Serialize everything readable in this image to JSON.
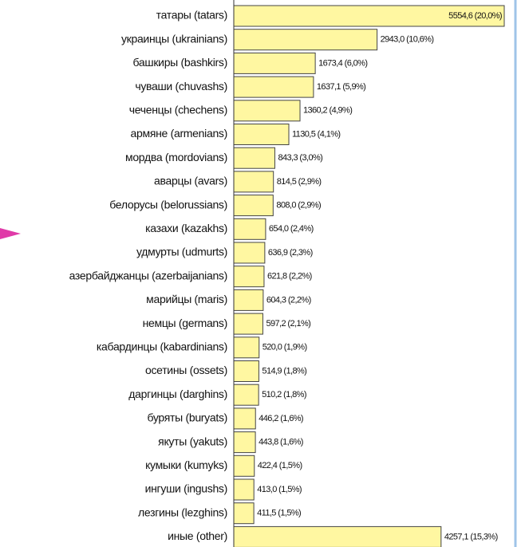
{
  "chart_data": {
    "type": "bar",
    "orientation": "horizontal",
    "color": "#fff7a1",
    "categories": [
      "татары (tatars)",
      "украинцы (ukrainians)",
      "башкиры (bashkirs)",
      "чуваши (chuvashs)",
      "чеченцы (chechens)",
      "армяне (armenians)",
      "мордва (mordovians)",
      "аварцы (avars)",
      "белорусы (belorussians)",
      "казахи (kazakhs)",
      "удмурты (udmurts)",
      "азербайджанцы (azerbaijanians)",
      "марийцы (maris)",
      "немцы (germans)",
      "кабардинцы (kabardinians)",
      "осетины (ossets)",
      "даргинцы (darghins)",
      "буряты (buryats)",
      "якуты (yakuts)",
      "кумыки (kumyks)",
      "ингуши (ingushs)",
      "лезгины (lezghins)",
      "иные (other)"
    ],
    "values": [
      5554.6,
      2943.0,
      1673.4,
      1637.1,
      1360.2,
      1130.5,
      843.3,
      814.5,
      808.0,
      654.0,
      636.9,
      621.8,
      604.3,
      597.2,
      520.0,
      514.9,
      510.2,
      446.2,
      443.8,
      422.4,
      413.0,
      411.5,
      4257.1
    ],
    "value_labels": [
      "5554,6 (20,0%)",
      "2943,0 (10,6%)",
      "1673,4 (6,0%)",
      "1637,1 (5,9%)",
      "1360,2 (4,9%)",
      "1130,5 (4,1%)",
      "843,3 (3,0%)",
      "814,5 (2,9%)",
      "808,0 (2,9%)",
      "654,0 (2,4%)",
      "636,9 (2,3%)",
      "621,8 (2,2%)",
      "604,3 (2,2%)",
      "597,2 (2,1%)",
      "520,0 (1,9%)",
      "514,9 (1,8%)",
      "510,2 (1,8%)",
      "446,2 (1,6%)",
      "443,8 (1,6%)",
      "422,4 (1,5%)",
      "413,0 (1,5%)",
      "411,5 (1,5%)",
      "4257,1 (15,3%)"
    ]
  }
}
